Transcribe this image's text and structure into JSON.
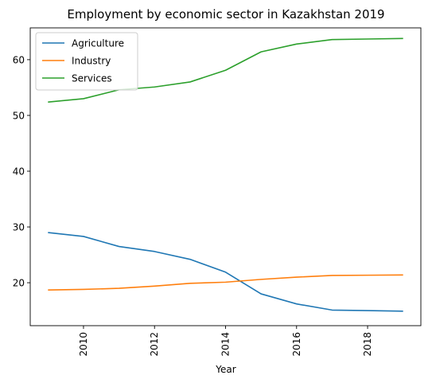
{
  "chart_data": {
    "type": "line",
    "title": "Employment by economic sector in Kazakhstan 2019",
    "xlabel": "Year",
    "ylabel": "",
    "x": [
      2009,
      2010,
      2011,
      2012,
      2013,
      2014,
      2015,
      2016,
      2017,
      2018,
      2019
    ],
    "xlim": [
      2008.5,
      2019.5
    ],
    "ylim": [
      12.3,
      65.7
    ],
    "xticks": [
      "2010",
      "2012",
      "2014",
      "2016",
      "2018"
    ],
    "yticks": [
      "20",
      "30",
      "40",
      "50",
      "60"
    ],
    "grid": false,
    "legend_position": "upper-left",
    "series": [
      {
        "name": "Agriculture",
        "color": "#1f77b4",
        "values": [
          29.0,
          28.3,
          26.5,
          25.6,
          24.2,
          21.9,
          18.0,
          16.2,
          15.1,
          15.0,
          14.9
        ]
      },
      {
        "name": "Industry",
        "color": "#ff7f0e",
        "values": [
          18.7,
          18.8,
          19.0,
          19.4,
          19.9,
          20.1,
          20.6,
          21.0,
          21.3,
          21.35,
          21.4
        ]
      },
      {
        "name": "Services",
        "color": "#2ca02c",
        "values": [
          52.4,
          53.0,
          54.6,
          55.1,
          56.0,
          58.1,
          61.4,
          62.8,
          63.6,
          63.7,
          63.8
        ]
      }
    ]
  }
}
